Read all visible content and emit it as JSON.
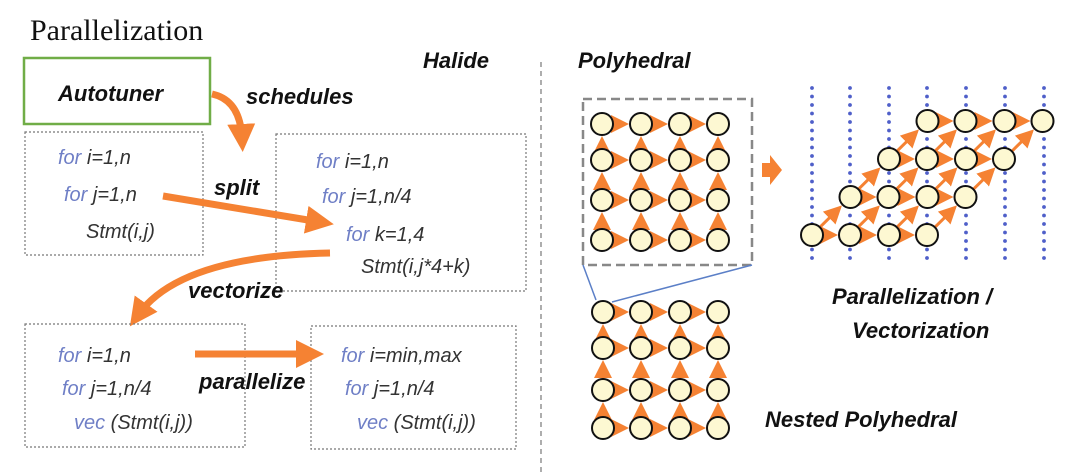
{
  "title": "Parallelization",
  "halide": {
    "label": "Halide",
    "autotuner": "Autotuner",
    "schedules": "schedules",
    "split": "split",
    "vectorize": "vectorize",
    "parallelize": "parallelize",
    "box1": [
      {
        "kw": "for",
        "rest": " i=1,n"
      },
      {
        "kw": "for",
        "rest": " j=1,n"
      },
      {
        "kw": "",
        "rest": "Stmt(i,j)"
      }
    ],
    "box2": [
      {
        "kw": "for",
        "rest": " i=1,n"
      },
      {
        "kw": "for",
        "rest": " j=1,n/4"
      },
      {
        "kw": "for",
        "rest": " k=1,4"
      },
      {
        "kw": "",
        "rest": "Stmt(i,j*4+k)"
      }
    ],
    "box3": [
      {
        "kw": "for",
        "rest": " i=1,n"
      },
      {
        "kw": "for",
        "rest": " j=1,n/4"
      },
      {
        "kw": "vec",
        "rest": " (Stmt(i,j))"
      }
    ],
    "box4": [
      {
        "kw": "for",
        "rest": " i=min,max"
      },
      {
        "kw": "for",
        "rest": " j=1,n/4"
      },
      {
        "kw": "vec",
        "rest": " (Stmt(i,j))"
      }
    ]
  },
  "polyhedral": {
    "label": "Polyhedral",
    "result_label_1": "Parallelization /",
    "result_label_2": "Vectorization",
    "nested_label": "Nested Polyhedral"
  },
  "colors": {
    "arrow": "#f58233",
    "node_fill": "#fdf8d2",
    "autotuner_border": "#70ad47",
    "dots": "#4f5fc9",
    "keyword": "#6f7fc6"
  }
}
